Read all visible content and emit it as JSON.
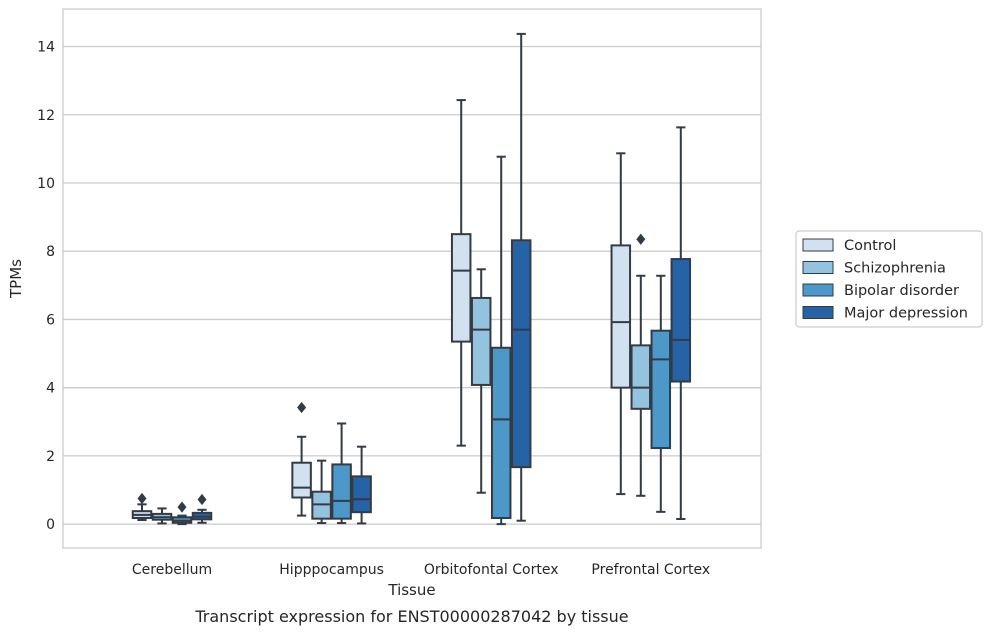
{
  "chart_data": {
    "type": "boxplot",
    "caption": "Transcript expression for ENST00000287042 by tissue",
    "xlabel": "Tissue",
    "ylabel": "TPMs",
    "ylim": [
      -0.7,
      15.1
    ],
    "yticks": [
      0,
      2,
      4,
      6,
      8,
      10,
      12,
      14
    ],
    "grid": true,
    "legend_position": "right",
    "categories": [
      "Cerebellum",
      "Hipppocampus",
      "Orbitofontal Cortex",
      "Prefrontal Cortex"
    ],
    "series": [
      {
        "name": "Control",
        "color": "#d1e1f0",
        "boxes": [
          {
            "whisker_low": 0.12,
            "q1": 0.18,
            "median": 0.27,
            "q3": 0.38,
            "whisker_high": 0.58,
            "outliers": [
              0.75
            ]
          },
          {
            "whisker_low": 0.25,
            "q1": 0.78,
            "median": 1.07,
            "q3": 1.8,
            "whisker_high": 2.56,
            "outliers": [
              3.42
            ]
          },
          {
            "whisker_low": 2.3,
            "q1": 5.35,
            "median": 7.43,
            "q3": 8.5,
            "whisker_high": 12.43,
            "outliers": []
          },
          {
            "whisker_low": 0.88,
            "q1": 4.0,
            "median": 5.92,
            "q3": 8.17,
            "whisker_high": 10.87,
            "outliers": []
          }
        ]
      },
      {
        "name": "Schizophrenia",
        "color": "#93c3df",
        "boxes": [
          {
            "whisker_low": 0.02,
            "q1": 0.13,
            "median": 0.2,
            "q3": 0.3,
            "whisker_high": 0.46,
            "outliers": []
          },
          {
            "whisker_low": 0.03,
            "q1": 0.16,
            "median": 0.58,
            "q3": 0.95,
            "whisker_high": 1.86,
            "outliers": []
          },
          {
            "whisker_low": 0.92,
            "q1": 4.08,
            "median": 5.7,
            "q3": 6.63,
            "whisker_high": 7.47,
            "outliers": []
          },
          {
            "whisker_low": 0.83,
            "q1": 3.38,
            "median": 4.0,
            "q3": 5.24,
            "whisker_high": 7.28,
            "outliers": [
              8.35
            ]
          }
        ]
      },
      {
        "name": "Bipolar disorder",
        "color": "#4b98c9",
        "boxes": [
          {
            "whisker_low": 0.0,
            "q1": 0.04,
            "median": 0.1,
            "q3": 0.2,
            "whisker_high": 0.25,
            "outliers": [
              0.5
            ]
          },
          {
            "whisker_low": 0.03,
            "q1": 0.16,
            "median": 0.68,
            "q3": 1.75,
            "whisker_high": 2.95,
            "outliers": []
          },
          {
            "whisker_low": 0.0,
            "q1": 0.18,
            "median": 3.07,
            "q3": 5.17,
            "whisker_high": 10.77,
            "outliers": []
          },
          {
            "whisker_low": 0.36,
            "q1": 2.23,
            "median": 4.83,
            "q3": 5.67,
            "whisker_high": 7.28,
            "outliers": []
          }
        ]
      },
      {
        "name": "Major depression",
        "color": "#2563a6",
        "boxes": [
          {
            "whisker_low": 0.04,
            "q1": 0.14,
            "median": 0.22,
            "q3": 0.33,
            "whisker_high": 0.42,
            "outliers": [
              0.72
            ]
          },
          {
            "whisker_low": 0.02,
            "q1": 0.35,
            "median": 0.73,
            "q3": 1.4,
            "whisker_high": 2.27,
            "outliers": []
          },
          {
            "whisker_low": 0.1,
            "q1": 1.67,
            "median": 5.7,
            "q3": 8.32,
            "whisker_high": 14.37,
            "outliers": []
          },
          {
            "whisker_low": 0.15,
            "q1": 4.18,
            "median": 5.4,
            "q3": 7.77,
            "whisker_high": 11.63,
            "outliers": []
          }
        ]
      }
    ]
  }
}
